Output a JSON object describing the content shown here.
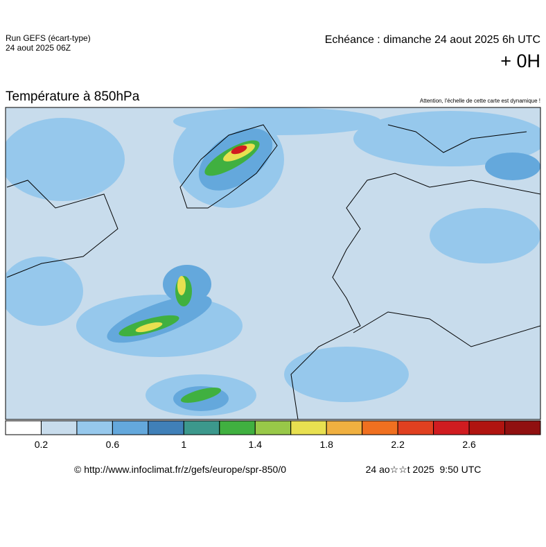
{
  "header": {
    "run": "Run GEFS (écart-type)",
    "run_date": "24 aout 2025 06Z",
    "echeance": "Echéance : dimanche 24 aout 2025 6h UTC",
    "offset": "+ 0H"
  },
  "map": {
    "title": "Température à 850hPa",
    "note": "Attention, l'échelle de cette carte est dynamique !"
  },
  "colorbar": {
    "colors": [
      "#ffffff",
      "#c8dcec",
      "#96c8ec",
      "#64a8dc",
      "#4080b8",
      "#3c988c",
      "#40b040",
      "#98c848",
      "#e8e050",
      "#f0b040",
      "#f07020",
      "#e04020",
      "#d01c20",
      "#b01410",
      "#901010"
    ],
    "labels": [
      0.2,
      0.6,
      1,
      1.4,
      1.8,
      2.2,
      2.6
    ]
  },
  "footer": {
    "source": "© http://www.infoclimat.fr/z/gefs/europe/spr-850/0",
    "timestamp": "24 ao☆☆t 2025  9:50 UTC"
  }
}
